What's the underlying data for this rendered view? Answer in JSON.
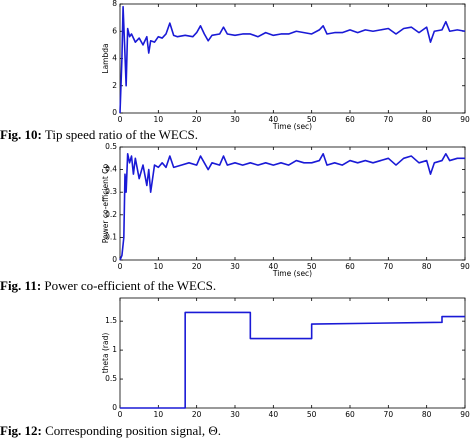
{
  "chart_data": [
    {
      "type": "line",
      "xlabel": "Time (sec)",
      "ylabel": "Lambda",
      "x": [
        0,
        0.5,
        0.8,
        1.2,
        1.6,
        2,
        2.5,
        3,
        4,
        5,
        6,
        7,
        7.5,
        8,
        9,
        10,
        11,
        12,
        13,
        14,
        15,
        17,
        19,
        20,
        21,
        22,
        23,
        24,
        26,
        27,
        28,
        30,
        32,
        34,
        36,
        38,
        40,
        42,
        44,
        46,
        48,
        50,
        52,
        53,
        54,
        56,
        58,
        60,
        62,
        64,
        66,
        68,
        70,
        72,
        74,
        76,
        78,
        80,
        81,
        82,
        84,
        85,
        86,
        88,
        90
      ],
      "series": [
        {
          "name": "Lambda",
          "color": "#1a1ad6",
          "values": [
            0,
            4,
            7.8,
            5,
            2,
            6.2,
            5.6,
            5.8,
            5.2,
            5.5,
            5.0,
            5.6,
            4.4,
            5.3,
            5.2,
            5.6,
            5.5,
            5.8,
            6.6,
            5.7,
            5.6,
            5.7,
            5.6,
            5.9,
            6.4,
            5.8,
            5.3,
            5.7,
            5.8,
            6.3,
            5.8,
            5.7,
            5.8,
            5.8,
            5.6,
            5.9,
            5.7,
            5.8,
            5.8,
            6.0,
            5.9,
            5.8,
            6.1,
            6.4,
            5.8,
            5.9,
            5.9,
            6.1,
            5.9,
            6.1,
            6.0,
            6.1,
            6.2,
            5.8,
            6.2,
            6.3,
            5.9,
            6.3,
            5.2,
            6.0,
            6.1,
            6.7,
            6.0,
            6.1,
            6.0
          ]
        }
      ],
      "xlim": [
        0,
        90
      ],
      "xticks": [
        0,
        10,
        20,
        30,
        40,
        50,
        60,
        70,
        80,
        90
      ],
      "ylim": [
        0,
        8
      ],
      "yticks": [
        0,
        2,
        4,
        6,
        8
      ]
    },
    {
      "type": "line",
      "xlabel": "Time (sec)",
      "ylabel": "Power co-efficient Cp",
      "x": [
        0,
        0.5,
        1,
        1.3,
        1.6,
        2,
        2.5,
        3,
        3.5,
        4,
        5,
        6,
        7,
        7.5,
        8,
        9,
        10,
        11,
        12,
        13,
        14,
        16,
        18,
        20,
        21,
        22,
        23,
        24,
        26,
        27,
        28,
        30,
        32,
        34,
        36,
        38,
        40,
        42,
        44,
        46,
        48,
        50,
        52,
        53,
        54,
        56,
        58,
        60,
        62,
        64,
        66,
        68,
        70,
        72,
        74,
        76,
        78,
        80,
        81,
        82,
        84,
        85,
        86,
        88,
        90
      ],
      "series": [
        {
          "name": "Cp",
          "color": "#1a1ad6",
          "values": [
            0,
            0.02,
            0.1,
            0.38,
            0.3,
            0.47,
            0.43,
            0.46,
            0.38,
            0.45,
            0.36,
            0.42,
            0.33,
            0.4,
            0.3,
            0.42,
            0.41,
            0.43,
            0.41,
            0.46,
            0.41,
            0.42,
            0.43,
            0.42,
            0.46,
            0.43,
            0.4,
            0.43,
            0.42,
            0.46,
            0.42,
            0.43,
            0.42,
            0.43,
            0.42,
            0.43,
            0.42,
            0.43,
            0.42,
            0.44,
            0.43,
            0.43,
            0.44,
            0.47,
            0.42,
            0.43,
            0.42,
            0.44,
            0.43,
            0.44,
            0.43,
            0.44,
            0.45,
            0.42,
            0.45,
            0.46,
            0.43,
            0.44,
            0.38,
            0.43,
            0.44,
            0.47,
            0.44,
            0.45,
            0.45
          ]
        }
      ],
      "xlim": [
        0,
        90
      ],
      "xticks": [
        0,
        10,
        20,
        30,
        40,
        50,
        60,
        70,
        80,
        90
      ],
      "ylim": [
        0,
        0.5
      ],
      "yticks": [
        0,
        0.1,
        0.2,
        0.3,
        0.4,
        0.5
      ]
    },
    {
      "type": "line",
      "ylabel": "theta (rad)",
      "x": [
        0,
        17,
        17,
        34,
        34,
        50,
        50,
        84,
        84,
        90
      ],
      "series": [
        {
          "name": "theta",
          "color": "#1a1ad6",
          "values": [
            0,
            0,
            1.65,
            1.65,
            1.2,
            1.2,
            1.45,
            1.48,
            1.58,
            1.58
          ]
        }
      ],
      "xlim": [
        0,
        90
      ],
      "xticks": [
        0,
        10,
        20,
        30,
        40,
        50,
        60,
        70,
        80,
        90
      ],
      "ylim": [
        0,
        1.9
      ],
      "yticks": [
        0,
        0.5,
        1,
        1.5
      ]
    }
  ],
  "captions": [
    {
      "label": "Fig. 10:",
      "text": " Tip speed ratio of the WECS."
    },
    {
      "label": "Fig. 11:",
      "text": " Power co-efficient of the WECS."
    },
    {
      "label": "Fig. 12:",
      "text": " Corresponding position signal, Θ."
    }
  ]
}
